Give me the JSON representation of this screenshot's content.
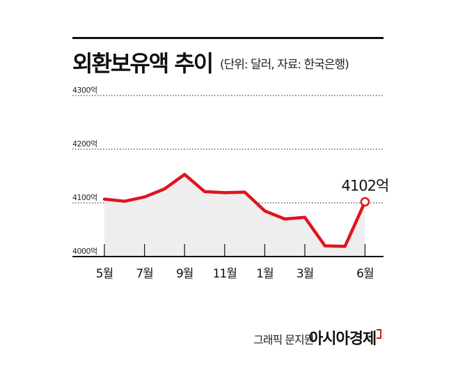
{
  "title": "외환보유액 추이",
  "subtitle": "(단위: 달러, 자료: 한국은행)",
  "credit": "그래픽 문지원",
  "brand": "아시아경제",
  "colors": {
    "line": "#e0141f",
    "area": "#eeeeee",
    "axis": "#111111"
  },
  "chart_data": {
    "type": "area",
    "title": "외환보유액 추이",
    "unit": "억 달러",
    "ylim": [
      4000,
      4300
    ],
    "yticks": [
      "4300억",
      "4200억",
      "4100억",
      "4000억"
    ],
    "ytick_values": [
      4300,
      4200,
      4100,
      4000
    ],
    "xtick_labels": [
      "5월",
      "7월",
      "9월",
      "11월",
      "1월",
      "3월",
      "6월"
    ],
    "xtick_index": [
      0,
      2,
      4,
      6,
      8,
      10,
      13
    ],
    "values": [
      4107,
      4103,
      4111,
      4126,
      4153,
      4121,
      4119,
      4120,
      4085,
      4070,
      4073,
      4020,
      4019,
      4102
    ],
    "last_label": "4102억",
    "grid": true
  }
}
